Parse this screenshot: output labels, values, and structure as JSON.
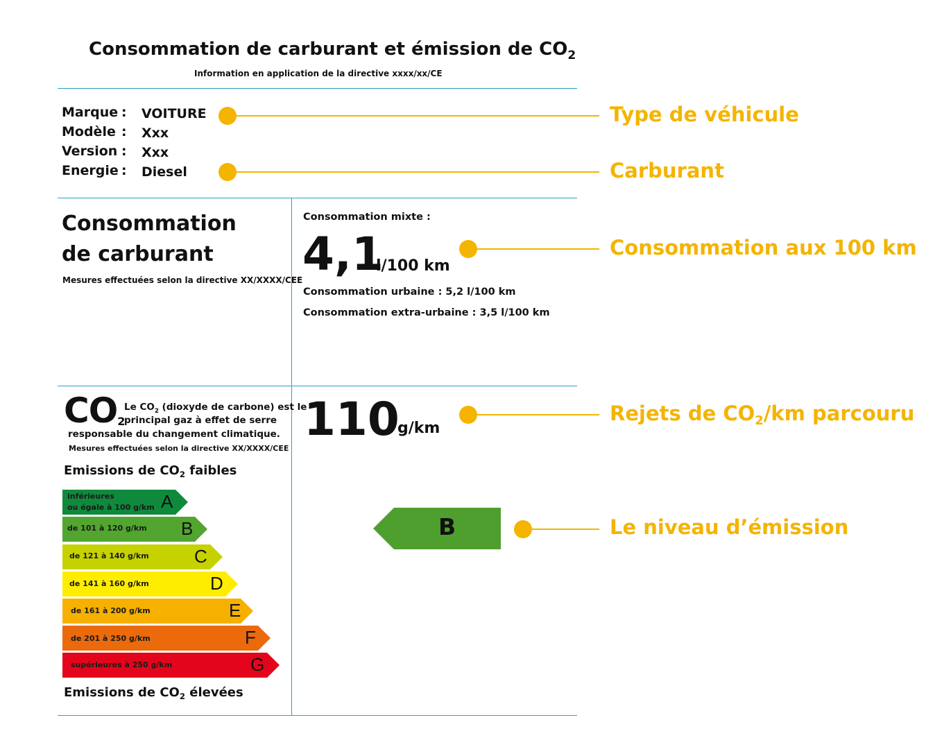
{
  "header": {
    "title": "Consommation de carburant et émission de CO",
    "title_sub": "2",
    "subtitle": "Information en application de la directive xxxx/xx/CE"
  },
  "vehicle": [
    {
      "label": "Marque",
      "sep": ":",
      "value": "VOITURE"
    },
    {
      "label": "Modèle",
      "sep": ":",
      "value": "Xxx"
    },
    {
      "label": "Version",
      "sep": ":",
      "value": "Xxx"
    },
    {
      "label": "Energie",
      "sep": ":",
      "value": "Diesel"
    }
  ],
  "consumption": {
    "heading_line1": "Consommation",
    "heading_line2": "de carburant",
    "note": "Mesures effectuées selon la directive XX/XXXX/CEE",
    "mixed_label": "Consommation mixte :",
    "mixed_value": "4,1",
    "mixed_unit": "l/100 km",
    "urban": "Consommation urbaine : 5,2 l/100 km",
    "extra_urban": "Consommation extra-urbaine : 3,5 l/100 km"
  },
  "co2": {
    "big": "CO",
    "big_sub": "2",
    "desc_line1_a": "Le CO",
    "desc_line1_sub": "2",
    "desc_line1_b": " (dioxyde de carbone) est le",
    "desc_line2": "principal gaz à effet de serre",
    "desc_line3": "responsable du changement climatique.",
    "note": "Mesures effectuées selon la directive XX/XXXX/CEE",
    "low_a": "Emissions de CO",
    "low_sub": "2",
    "low_b": " faibles",
    "high_a": "Emissions de CO",
    "high_sub": "2",
    "high_b": " élevées",
    "value": "110",
    "unit": "g/km",
    "level": "B",
    "level_color": "#4f9f2e"
  },
  "bands": [
    {
      "letter": "A",
      "label1": "inférieures",
      "label2": "ou égale à 100 g/km",
      "color": "#0f8a3c"
    },
    {
      "letter": "B",
      "label1": "de 101 à 120 g/km",
      "label2": "",
      "color": "#52a52f"
    },
    {
      "letter": "C",
      "label1": "de 121 à 140 g/km",
      "label2": "",
      "color": "#c5d200"
    },
    {
      "letter": "D",
      "label1": "de 141 à 160 g/km",
      "label2": "",
      "color": "#ffed00"
    },
    {
      "letter": "E",
      "label1": "de 161 à 200 g/km",
      "label2": "",
      "color": "#f6b000"
    },
    {
      "letter": "F",
      "label1": "de 201 à 250 g/km",
      "label2": "",
      "color": "#ea6a0c"
    },
    {
      "letter": "G",
      "label1": "supérieures à 250 g/km",
      "label2": "",
      "color": "#e3051b"
    }
  ],
  "callouts": {
    "vehicle_type": "Type de véhicule",
    "fuel": "Carburant",
    "consumption": "Consommation aux 100 km",
    "co2_a": "Rejets de CO",
    "co2_sub": "2",
    "co2_b": "/km parcouru",
    "level": "Le niveau d’émission",
    "color": "#f4b400"
  }
}
